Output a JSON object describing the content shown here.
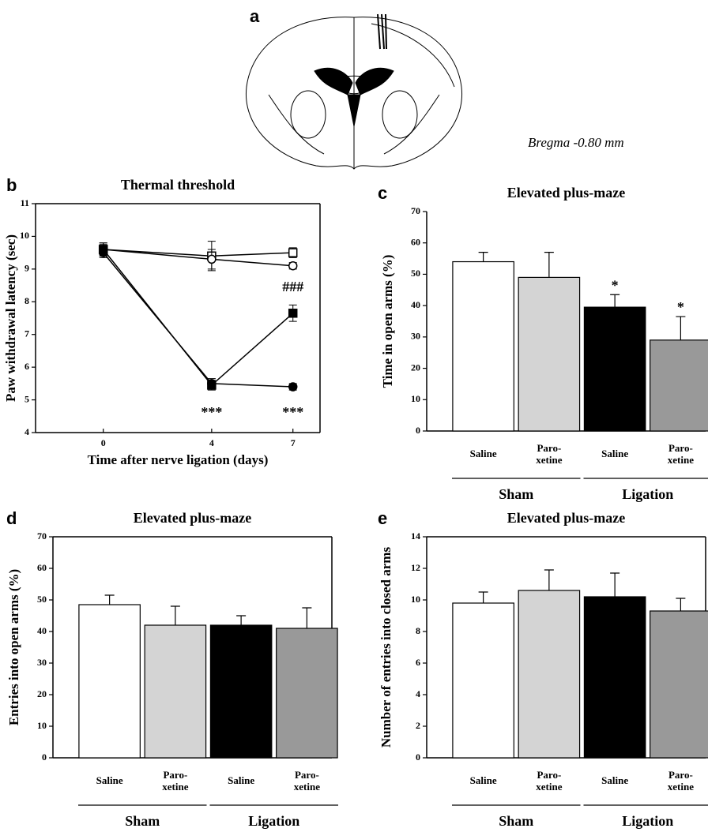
{
  "panel_a": {
    "label": "a",
    "caption": "Bregma -0.80 mm"
  },
  "chart_data": [
    {
      "type": "line",
      "panel": "b",
      "title": "Thermal threshold",
      "xlabel": "Time after nerve ligation (days)",
      "ylabel": "Paw withdrawal latency (sec)",
      "x": [
        0,
        4,
        7
      ],
      "xlim": [
        -2.5,
        8
      ],
      "xticks": [
        0,
        4,
        7
      ],
      "ylim": [
        4,
        11
      ],
      "yticks": [
        4,
        5,
        6,
        7,
        8,
        9,
        10,
        11
      ],
      "frame": true,
      "series": [
        {
          "color": "#000000",
          "marker": "square",
          "marker_fill": "#ffffff",
          "values": [
            9.6,
            9.4,
            9.5
          ],
          "errors": [
            0.2,
            0.45,
            0.15
          ]
        },
        {
          "color": "#000000",
          "marker": "circle",
          "marker_fill": "#ffffff",
          "values": [
            9.6,
            9.3,
            9.1
          ],
          "errors": [
            0.15,
            0.3,
            0.1
          ]
        },
        {
          "color": "#000000",
          "marker": "square",
          "marker_fill": "#000000",
          "values": [
            9.6,
            5.45,
            7.65
          ],
          "errors": [
            0.2,
            0.15,
            0.25
          ]
        },
        {
          "color": "#000000",
          "marker": "circle",
          "marker_fill": "#000000",
          "values": [
            9.5,
            5.5,
            5.4
          ],
          "errors": [
            0.15,
            0.15,
            0.1
          ]
        }
      ],
      "annotations": [
        {
          "text": "***",
          "x": 4
        },
        {
          "text": "***",
          "x": 7
        },
        {
          "text": "###",
          "x": 7
        }
      ]
    },
    {
      "type": "bar",
      "panel": "c",
      "title": "Elevated plus-maze",
      "ylabel": "Time in open arms (%)",
      "categories": [
        "Saline",
        "Paro-\nxetine",
        "Saline",
        "Paro-\nxetine"
      ],
      "groups": [
        "Sham",
        "Ligation"
      ],
      "values": [
        54,
        49,
        39.5,
        29
      ],
      "errors": [
        3,
        8,
        4,
        7.5
      ],
      "annotations": [
        null,
        null,
        "*",
        "*"
      ],
      "colors": [
        "#ffffff",
        "#d4d4d4",
        "#000000",
        "#999999"
      ],
      "ylim": [
        0,
        70
      ],
      "yticks": [
        0,
        10,
        20,
        30,
        40,
        50,
        60,
        70
      ],
      "frame": false
    },
    {
      "type": "bar",
      "panel": "d",
      "title": "Elevated plus-maze",
      "ylabel": "Entries into open arms (%)",
      "categories": [
        "Saline",
        "Paro-\nxetine",
        "Saline",
        "Paro-\nxetine"
      ],
      "groups": [
        "Sham",
        "Ligation"
      ],
      "values": [
        48.5,
        42,
        42,
        41
      ],
      "errors": [
        3,
        6,
        3,
        6.5
      ],
      "colors": [
        "#ffffff",
        "#d4d4d4",
        "#000000",
        "#999999"
      ],
      "ylim": [
        0,
        70
      ],
      "yticks": [
        0,
        10,
        20,
        30,
        40,
        50,
        60,
        70
      ],
      "frame": true
    },
    {
      "type": "bar",
      "panel": "e",
      "title": "Elevated plus-maze",
      "ylabel": "Number of entries into closed arms",
      "categories": [
        "Saline",
        "Paro-\nxetine",
        "Saline",
        "Paro-\nxetine"
      ],
      "groups": [
        "Sham",
        "Ligation"
      ],
      "values": [
        9.8,
        10.6,
        10.2,
        9.3
      ],
      "errors": [
        0.7,
        1.3,
        1.5,
        0.8
      ],
      "colors": [
        "#ffffff",
        "#d4d4d4",
        "#000000",
        "#999999"
      ],
      "ylim": [
        0,
        14
      ],
      "yticks": [
        0,
        2,
        4,
        6,
        8,
        10,
        12,
        14
      ],
      "frame": true
    }
  ]
}
